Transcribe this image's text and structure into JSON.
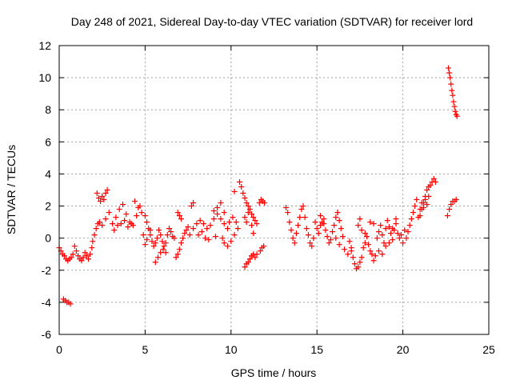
{
  "chart_data": {
    "type": "scatter",
    "title": "Day 248 of 2021, Sidereal Day-to-day VTEC variation (SDTVAR) for receiver lord",
    "xlabel": "GPS time / hours",
    "ylabel": "SDTVAR / TECUs",
    "xlim": [
      0,
      25
    ],
    "ylim": [
      -6,
      12
    ],
    "xticks": [
      0,
      5,
      10,
      15,
      20,
      25
    ],
    "yticks": [
      -6,
      -4,
      -2,
      0,
      2,
      4,
      6,
      8,
      10,
      12
    ],
    "grid": true,
    "marker": "+",
    "color": "#ff0000",
    "series": [
      {
        "name": "SDTVAR",
        "points": [
          [
            0.0,
            -0.6
          ],
          [
            0.1,
            -0.8
          ],
          [
            0.2,
            -1.0
          ],
          [
            0.3,
            -1.1
          ],
          [
            0.4,
            -1.3
          ],
          [
            0.5,
            -1.4
          ],
          [
            0.6,
            -1.3
          ],
          [
            0.7,
            -1.2
          ],
          [
            0.8,
            -1.0
          ],
          [
            0.25,
            -3.8
          ],
          [
            0.35,
            -3.9
          ],
          [
            0.45,
            -4.0
          ],
          [
            0.55,
            -4.0
          ],
          [
            0.65,
            -4.1
          ],
          [
            0.9,
            -0.5
          ],
          [
            1.0,
            -0.8
          ],
          [
            1.1,
            -1.1
          ],
          [
            1.2,
            -1.3
          ],
          [
            1.3,
            -1.4
          ],
          [
            1.4,
            -1.2
          ],
          [
            1.5,
            -0.9
          ],
          [
            1.6,
            -1.1
          ],
          [
            1.7,
            -1.3
          ],
          [
            1.8,
            -1.0
          ],
          [
            1.9,
            -0.6
          ],
          [
            1.95,
            -0.2
          ],
          [
            2.05,
            0.2
          ],
          [
            2.15,
            0.6
          ],
          [
            2.25,
            0.9
          ],
          [
            2.35,
            1.0
          ],
          [
            2.2,
            2.8
          ],
          [
            2.3,
            2.5
          ],
          [
            2.4,
            2.3
          ],
          [
            2.5,
            2.6
          ],
          [
            2.6,
            2.4
          ],
          [
            2.7,
            2.8
          ],
          [
            2.8,
            3.0
          ],
          [
            2.5,
            0.8
          ],
          [
            2.7,
            1.2
          ],
          [
            2.9,
            1.6
          ],
          [
            3.1,
            0.9
          ],
          [
            3.3,
            1.3
          ],
          [
            3.5,
            1.8
          ],
          [
            3.7,
            2.1
          ],
          [
            3.9,
            1.5
          ],
          [
            4.1,
            1.0
          ],
          [
            4.3,
            0.8
          ],
          [
            4.5,
            1.4
          ],
          [
            4.7,
            2.0
          ],
          [
            3.2,
            0.5
          ],
          [
            3.4,
            0.8
          ],
          [
            3.6,
            0.9
          ],
          [
            3.8,
            1.1
          ],
          [
            4.0,
            0.7
          ],
          [
            4.2,
            0.9
          ],
          [
            4.4,
            2.3
          ],
          [
            4.6,
            1.9
          ],
          [
            4.8,
            1.6
          ],
          [
            5.0,
            1.4
          ],
          [
            5.1,
            1.0
          ],
          [
            5.2,
            0.6
          ],
          [
            5.3,
            0.2
          ],
          [
            5.4,
            -0.2
          ],
          [
            5.5,
            -0.5
          ],
          [
            5.6,
            -0.3
          ],
          [
            5.7,
            0.0
          ],
          [
            4.9,
            0.2
          ],
          [
            5.0,
            -0.4
          ],
          [
            5.1,
            -0.1
          ],
          [
            5.3,
            0.5
          ],
          [
            5.8,
            0.5
          ],
          [
            5.9,
            0.2
          ],
          [
            6.0,
            -0.2
          ],
          [
            6.1,
            -0.5
          ],
          [
            6.2,
            -0.3
          ],
          [
            6.3,
            0.2
          ],
          [
            6.4,
            0.6
          ],
          [
            6.5,
            0.4
          ],
          [
            6.6,
            0.1
          ],
          [
            6.7,
            0.0
          ],
          [
            5.6,
            -1.5
          ],
          [
            5.75,
            -1.2
          ],
          [
            5.9,
            -0.9
          ],
          [
            6.05,
            -0.7
          ],
          [
            6.2,
            -0.9
          ],
          [
            6.8,
            -1.2
          ],
          [
            6.9,
            -1.0
          ],
          [
            7.0,
            -0.7
          ],
          [
            7.1,
            -0.3
          ],
          [
            7.2,
            0.0
          ],
          [
            7.3,
            0.3
          ],
          [
            7.4,
            0.5
          ],
          [
            7.5,
            0.7
          ],
          [
            6.9,
            1.6
          ],
          [
            7.0,
            1.4
          ],
          [
            7.1,
            1.2
          ],
          [
            7.7,
            2.0
          ],
          [
            7.8,
            2.2
          ],
          [
            7.6,
            0.2
          ],
          [
            7.8,
            0.6
          ],
          [
            8.0,
            0.9
          ],
          [
            8.2,
            1.1
          ],
          [
            8.4,
            0.9
          ],
          [
            8.6,
            0.6
          ],
          [
            8.8,
            0.8
          ],
          [
            9.0,
            1.2
          ],
          [
            9.2,
            1.5
          ],
          [
            9.4,
            1.2
          ],
          [
            9.6,
            0.9
          ],
          [
            9.8,
            0.6
          ],
          [
            8.1,
            0.2
          ],
          [
            8.3,
            0.4
          ],
          [
            8.5,
            0.0
          ],
          [
            8.7,
            -0.1
          ],
          [
            9.1,
            0.1
          ],
          [
            9.0,
            1.7
          ],
          [
            9.2,
            1.9
          ],
          [
            9.4,
            2.2
          ],
          [
            9.6,
            1.6
          ],
          [
            9.5,
            0.0
          ],
          [
            9.6,
            -0.3
          ],
          [
            9.8,
            -0.5
          ],
          [
            10.0,
            -0.2
          ],
          [
            10.2,
            0.2
          ],
          [
            10.4,
            0.6
          ],
          [
            9.9,
            1.0
          ],
          [
            10.1,
            1.3
          ],
          [
            10.3,
            1.0
          ],
          [
            10.5,
            3.5
          ],
          [
            10.6,
            3.2
          ],
          [
            10.7,
            2.8
          ],
          [
            10.8,
            2.5
          ],
          [
            10.9,
            2.2
          ],
          [
            11.0,
            2.0
          ],
          [
            11.1,
            1.8
          ],
          [
            11.2,
            1.5
          ],
          [
            11.3,
            1.3
          ],
          [
            11.4,
            1.1
          ],
          [
            11.5,
            0.9
          ],
          [
            10.2,
            2.9
          ],
          [
            10.8,
            1.3
          ],
          [
            10.9,
            1.0
          ],
          [
            11.0,
            1.6
          ],
          [
            11.2,
            0.8
          ],
          [
            11.3,
            0.3
          ],
          [
            10.8,
            -1.8
          ],
          [
            10.9,
            -1.6
          ],
          [
            11.0,
            -1.5
          ],
          [
            11.1,
            -1.3
          ],
          [
            11.2,
            -1.1
          ],
          [
            11.3,
            -1.0
          ],
          [
            11.4,
            -1.2
          ],
          [
            11.5,
            -1.0
          ],
          [
            11.7,
            -0.8
          ],
          [
            11.8,
            -0.6
          ],
          [
            11.9,
            -0.5
          ],
          [
            11.65,
            2.2
          ],
          [
            11.75,
            2.4
          ],
          [
            11.85,
            2.3
          ],
          [
            11.95,
            2.2
          ],
          [
            13.2,
            1.9
          ],
          [
            13.3,
            1.6
          ],
          [
            13.4,
            1.0
          ],
          [
            13.5,
            0.5
          ],
          [
            13.6,
            0.0
          ],
          [
            13.7,
            -0.3
          ],
          [
            13.8,
            0.3
          ],
          [
            13.9,
            0.8
          ],
          [
            14.0,
            1.3
          ],
          [
            14.1,
            1.8
          ],
          [
            14.2,
            2.0
          ],
          [
            14.3,
            1.3
          ],
          [
            14.4,
            0.6
          ],
          [
            14.5,
            0.2
          ],
          [
            14.6,
            -0.3
          ],
          [
            14.7,
            -0.5
          ],
          [
            14.8,
            0.0
          ],
          [
            14.9,
            1.0
          ],
          [
            15.0,
            0.6
          ],
          [
            15.1,
            0.3
          ],
          [
            15.2,
            0.8
          ],
          [
            15.3,
            1.0
          ],
          [
            15.4,
            0.9
          ],
          [
            15.5,
            0.5
          ],
          [
            15.6,
            0.1
          ],
          [
            15.7,
            -0.3
          ],
          [
            15.8,
            -0.1
          ],
          [
            15.9,
            0.4
          ],
          [
            16.0,
            0.8
          ],
          [
            16.1,
            1.3
          ],
          [
            16.2,
            1.6
          ],
          [
            16.3,
            1.1
          ],
          [
            16.4,
            0.6
          ],
          [
            16.5,
            0.1
          ],
          [
            15.2,
            1.4
          ],
          [
            15.4,
            1.2
          ],
          [
            16.1,
            0.0
          ],
          [
            16.3,
            -0.4
          ],
          [
            16.6,
            -0.7
          ],
          [
            16.8,
            -1.0
          ],
          [
            17.0,
            -0.6
          ],
          [
            16.2,
            1.6
          ],
          [
            16.9,
            -0.2
          ],
          [
            17.0,
            -0.8
          ],
          [
            17.1,
            -1.2
          ],
          [
            17.2,
            -1.6
          ],
          [
            17.3,
            -1.9
          ],
          [
            17.4,
            -1.8
          ],
          [
            17.5,
            -1.5
          ],
          [
            17.6,
            -1.2
          ],
          [
            17.7,
            -0.6
          ],
          [
            17.8,
            -0.3
          ],
          [
            17.9,
            0.1
          ],
          [
            18.0,
            -0.4
          ],
          [
            18.1,
            -0.8
          ],
          [
            18.2,
            -1.0
          ],
          [
            18.3,
            -1.4
          ],
          [
            18.4,
            -1.1
          ],
          [
            17.4,
            0.8
          ],
          [
            17.5,
            1.2
          ],
          [
            17.6,
            0.5
          ],
          [
            17.8,
            0.3
          ],
          [
            18.1,
            1.0
          ],
          [
            18.3,
            0.9
          ],
          [
            18.5,
            0.0
          ],
          [
            18.6,
            0.4
          ],
          [
            18.7,
            0.8
          ],
          [
            18.8,
            0.2
          ],
          [
            18.9,
            -0.3
          ],
          [
            19.0,
            0.6
          ],
          [
            19.1,
            1.1
          ],
          [
            19.2,
            0.7
          ],
          [
            19.3,
            0.3
          ],
          [
            19.4,
            -0.1
          ],
          [
            19.5,
            0.5
          ],
          [
            19.6,
            0.9
          ],
          [
            19.7,
            0.3
          ],
          [
            19.8,
            0.0
          ],
          [
            19.9,
            0.2
          ],
          [
            20.0,
            -0.3
          ],
          [
            20.1,
            0.5
          ],
          [
            18.6,
            -0.8
          ],
          [
            18.8,
            -1.0
          ],
          [
            19.0,
            -0.5
          ],
          [
            19.2,
            -0.3
          ],
          [
            19.4,
            0.6
          ],
          [
            19.6,
            1.2
          ],
          [
            20.2,
            0.0
          ],
          [
            20.3,
            0.4
          ],
          [
            20.4,
            0.8
          ],
          [
            20.5,
            1.2
          ],
          [
            20.6,
            1.6
          ],
          [
            20.7,
            2.0
          ],
          [
            20.8,
            2.4
          ],
          [
            20.9,
            1.3
          ],
          [
            21.0,
            1.8
          ],
          [
            21.1,
            2.2
          ],
          [
            21.2,
            1.9
          ],
          [
            21.3,
            2.4
          ],
          [
            21.4,
            2.1
          ],
          [
            21.5,
            2.6
          ],
          [
            21.0,
            1.4
          ],
          [
            21.1,
            1.8
          ],
          [
            21.2,
            2.2
          ],
          [
            21.3,
            2.6
          ],
          [
            21.4,
            3.0
          ],
          [
            21.5,
            3.2
          ],
          [
            21.6,
            3.3
          ],
          [
            21.7,
            3.5
          ],
          [
            21.8,
            3.7
          ],
          [
            21.9,
            3.5
          ],
          [
            22.6,
            1.4
          ],
          [
            22.7,
            1.8
          ],
          [
            22.8,
            2.1
          ],
          [
            22.9,
            2.3
          ],
          [
            23.0,
            2.3
          ],
          [
            23.1,
            2.4
          ],
          [
            22.65,
            10.6
          ],
          [
            22.7,
            10.3
          ],
          [
            22.75,
            10.0
          ],
          [
            22.8,
            9.6
          ],
          [
            22.85,
            9.2
          ],
          [
            22.9,
            8.9
          ],
          [
            22.95,
            8.5
          ],
          [
            23.0,
            8.2
          ],
          [
            23.05,
            7.9
          ],
          [
            23.1,
            7.7
          ],
          [
            23.15,
            7.6
          ]
        ]
      }
    ]
  }
}
